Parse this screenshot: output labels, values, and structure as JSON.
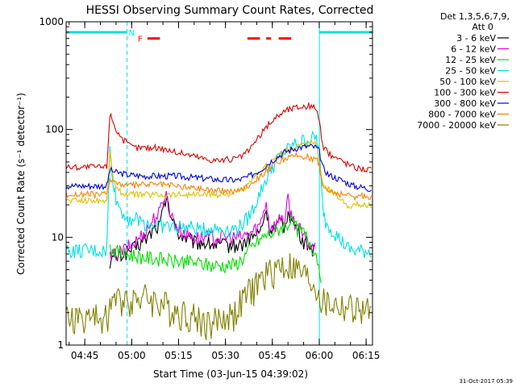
{
  "chart_data": {
    "type": "line",
    "title": "HESSI Observing Summary Count Rates, Corrected",
    "xlabel": "Start Time (03-Jun-15 04:39:02)",
    "ylabel": "Corrected Count Rate (s⁻¹ detector⁻¹)",
    "x_unit": "minutes after 04:39:02",
    "xlim": [
      0,
      98
    ],
    "ylim": [
      1,
      1000
    ],
    "yscale": "log",
    "x_ticks": [
      {
        "x": 5.97,
        "label": "04:45"
      },
      {
        "x": 20.97,
        "label": "05:00"
      },
      {
        "x": 35.97,
        "label": "05:15"
      },
      {
        "x": 50.97,
        "label": "05:30"
      },
      {
        "x": 65.97,
        "label": "05:45"
      },
      {
        "x": 80.97,
        "label": "06:00"
      },
      {
        "x": 95.97,
        "label": "06:15"
      }
    ],
    "y_ticks": [
      {
        "y": 1,
        "label": "1"
      },
      {
        "y": 10,
        "label": "10"
      },
      {
        "y": 100,
        "label": "100"
      },
      {
        "y": 1000,
        "label": "1000"
      }
    ],
    "legend_title": [
      "Det 1,3,5,6,7,9,",
      "Att 0"
    ],
    "legend_position": "right",
    "series": [
      {
        "name": "3 - 6 keV",
        "color": "#000000",
        "x": [
          0,
          13,
          14,
          18,
          22,
          26,
          28,
          30,
          31,
          32,
          34,
          36,
          38,
          41,
          44,
          48,
          52,
          56,
          59,
          62,
          64,
          65,
          67,
          69,
          70,
          71,
          72,
          74,
          76,
          78,
          80,
          81,
          82
        ],
        "y": [
          null,
          null,
          6,
          7,
          8,
          10,
          12,
          13,
          18,
          23,
          14,
          11,
          10,
          9,
          9,
          8.5,
          8.5,
          8.5,
          10,
          11,
          18,
          12,
          12,
          14,
          12,
          19,
          14,
          12,
          9,
          8.5,
          7,
          null,
          null
        ]
      },
      {
        "name": "6 - 12 keV",
        "color": "#e000e0",
        "x": [
          0,
          13,
          14,
          18,
          22,
          26,
          28,
          30,
          31,
          32,
          34,
          36,
          38,
          41,
          44,
          48,
          52,
          56,
          59,
          62,
          64,
          65,
          67,
          69,
          70,
          71,
          72,
          74,
          76,
          78,
          80,
          81,
          82
        ],
        "y": [
          null,
          null,
          6.5,
          7.5,
          9,
          12,
          15,
          17,
          23,
          25,
          15,
          12,
          11,
          10,
          10,
          10,
          10,
          10,
          11,
          13,
          22,
          13,
          13,
          16,
          14,
          23,
          16,
          13,
          10,
          8.5,
          7.5,
          null,
          null
        ]
      },
      {
        "name": "12 - 25 keV",
        "color": "#00e000",
        "x": [
          0,
          13,
          14,
          18,
          22,
          26,
          30,
          34,
          38,
          42,
          46,
          50,
          54,
          56,
          58,
          60,
          62,
          64,
          66,
          68,
          70,
          72,
          74,
          76,
          78,
          80,
          82,
          83
        ],
        "y": [
          null,
          null,
          8,
          7,
          6.8,
          6.5,
          6.3,
          6,
          6,
          5.8,
          5.5,
          5.5,
          5.6,
          6.2,
          7.2,
          8.5,
          9.5,
          10.5,
          11,
          12,
          13,
          14,
          12,
          11,
          9,
          7,
          4,
          null
        ]
      },
      {
        "name": "25 - 50 keV",
        "color": "#00e0e0",
        "x": [
          0,
          13,
          14,
          15,
          16,
          18,
          20,
          22,
          24,
          26,
          28,
          30,
          34,
          38,
          42,
          46,
          50,
          54,
          56,
          58,
          60,
          62,
          64,
          66,
          68,
          70,
          72,
          74,
          76,
          78,
          80,
          81,
          82,
          83,
          90,
          92,
          98
        ],
        "y": [
          7.5,
          7.5,
          65,
          35,
          22,
          17,
          15,
          15,
          14,
          13.5,
          13,
          13,
          12.5,
          12.5,
          12,
          12,
          12,
          12,
          13,
          15,
          19,
          26,
          35,
          45,
          55,
          62,
          70,
          75,
          80,
          82,
          85,
          60,
          20,
          14,
          8,
          7.5,
          7.5
        ]
      },
      {
        "name": "50 - 100 keV",
        "color": "#e0c000",
        "x": [
          0,
          13,
          14,
          15,
          16,
          18,
          20,
          25,
          30,
          35,
          40,
          45,
          50,
          55,
          58,
          62,
          66,
          70,
          74,
          78,
          80,
          81,
          82,
          84,
          90,
          92,
          98
        ],
        "y": [
          22,
          22,
          60,
          38,
          28,
          26,
          25,
          25,
          25,
          25,
          25,
          25,
          25,
          26,
          30,
          40,
          52,
          62,
          70,
          74,
          75,
          50,
          30,
          28,
          20,
          20,
          20
        ]
      },
      {
        "name": "100 - 300 keV",
        "color": "#e00000",
        "x": [
          0,
          13,
          14,
          15,
          16,
          18,
          20,
          22,
          25,
          30,
          35,
          40,
          45,
          50,
          55,
          58,
          61,
          64,
          67,
          70,
          73,
          76,
          78,
          80,
          81,
          82,
          84,
          88,
          92,
          98
        ],
        "y": [
          45,
          45,
          140,
          120,
          100,
          82,
          72,
          68,
          68,
          68,
          62,
          58,
          53,
          52,
          54,
          62,
          80,
          105,
          130,
          150,
          160,
          165,
          165,
          160,
          120,
          70,
          60,
          52,
          45,
          42
        ]
      },
      {
        "name": "300 - 800 keV",
        "color": "#0000e0",
        "x": [
          0,
          13,
          14,
          16,
          20,
          25,
          30,
          35,
          40,
          45,
          50,
          55,
          58,
          62,
          66,
          70,
          74,
          78,
          80,
          81,
          82,
          84,
          88,
          92,
          98
        ],
        "y": [
          30,
          30,
          42,
          40,
          38,
          37,
          37,
          37,
          36,
          35,
          34,
          34,
          36,
          42,
          52,
          62,
          68,
          70,
          68,
          62,
          45,
          38,
          34,
          30,
          28
        ]
      },
      {
        "name": "800 - 7000 keV",
        "color": "#ff8000",
        "x": [
          0,
          13,
          14,
          16,
          20,
          25,
          30,
          35,
          40,
          45,
          50,
          55,
          58,
          62,
          66,
          70,
          74,
          78,
          80,
          81,
          82,
          84,
          88,
          92,
          98
        ],
        "y": [
          25,
          25,
          35,
          32,
          30,
          31,
          31,
          30,
          29,
          28,
          27,
          27,
          30,
          37,
          46,
          54,
          57,
          55,
          53,
          48,
          30,
          27,
          25,
          24,
          24
        ]
      },
      {
        "name": "7000 - 20000 keV",
        "color": "#808000",
        "x": [
          0,
          13,
          14,
          20,
          26,
          30,
          34,
          38,
          42,
          46,
          50,
          54,
          56,
          58,
          60,
          62,
          64,
          66,
          68,
          70,
          72,
          74,
          76,
          78,
          80,
          82,
          98
        ],
        "y": [
          1.8,
          1.8,
          2.5,
          2.8,
          2.8,
          2.5,
          2.2,
          2,
          1.8,
          1.6,
          1.8,
          2,
          2.5,
          3,
          3.5,
          4,
          4.5,
          5,
          5.5,
          5.5,
          5.5,
          5,
          4.5,
          4,
          3.5,
          2.5,
          2
        ]
      }
    ],
    "annotations": [
      {
        "kind": "cyan_bar",
        "label": "N",
        "x_start": 0,
        "x_end": 19.5,
        "y": 800
      },
      {
        "kind": "cyan_bar",
        "x_start": 81,
        "x_end": 98,
        "y": 800
      },
      {
        "kind": "flag_segments",
        "label": "F",
        "color": "#ff0000",
        "y": 700,
        "segments": [
          [
            26,
            30
          ],
          [
            58,
            62
          ],
          [
            64,
            65.5
          ],
          [
            68,
            72
          ]
        ]
      },
      {
        "kind": "vline",
        "style": "dashed",
        "color": "#00e0e0",
        "x": 19.5
      },
      {
        "kind": "vline",
        "style": "solid",
        "color": "#00e0e0",
        "x": 81
      },
      {
        "kind": "vline",
        "style": "dashed",
        "color": "#00e0e0",
        "x": 98
      },
      {
        "kind": "vline",
        "style": "solid",
        "color": "#00e0e0",
        "x": 0
      }
    ]
  },
  "footer_timestamp": "31-Oct-2017 05:39"
}
